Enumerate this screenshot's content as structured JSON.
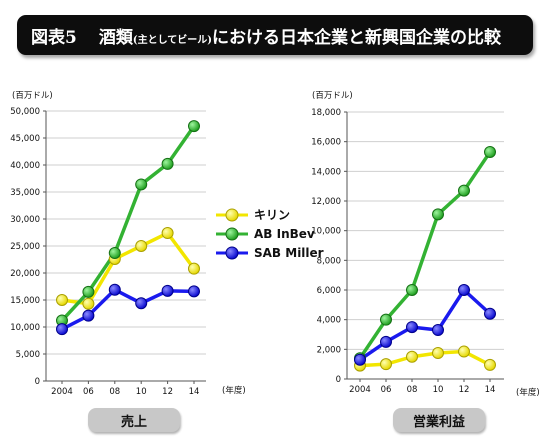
{
  "title": {
    "num": "図表5",
    "main1": "酒類",
    "paren": "(主としてビール)",
    "main2": "における日本企業と新興国企業の比較"
  },
  "chart_data": [
    {
      "type": "line",
      "title": "売上",
      "ylabel": "(百万ドル)",
      "xlabel": "(年度)",
      "x": [
        "2004",
        "06",
        "08",
        "10",
        "12",
        "14"
      ],
      "ylim": [
        0,
        50000
      ],
      "yticks": [
        0,
        5000,
        10000,
        15000,
        20000,
        25000,
        30000,
        35000,
        40000,
        45000,
        50000
      ],
      "ytick_labels": [
        "0",
        "5,000",
        "10,000",
        "15,000",
        "20,000",
        "25,000",
        "30,000",
        "35,000",
        "40,000",
        "45,000",
        "50,000"
      ],
      "series": [
        {
          "name": "キリン",
          "color": "#f2e600",
          "values": [
            15000,
            14300,
            22600,
            25000,
            27400,
            20800
          ]
        },
        {
          "name": "AB InBev",
          "color": "#33b233",
          "values": [
            11200,
            16500,
            23700,
            36400,
            40200,
            47200
          ]
        },
        {
          "name": "SAB Miller",
          "color": "#1a1aee",
          "values": [
            9600,
            12100,
            16900,
            14400,
            16700,
            16600
          ]
        }
      ]
    },
    {
      "type": "line",
      "title": "営業利益",
      "ylabel": "(百万ドル)",
      "xlabel": "(年度)",
      "x": [
        "2004",
        "06",
        "08",
        "10",
        "12",
        "14"
      ],
      "ylim": [
        0,
        18000
      ],
      "yticks": [
        0,
        2000,
        4000,
        6000,
        8000,
        10000,
        12000,
        14000,
        16000,
        18000
      ],
      "ytick_labels": [
        "0",
        "2,000",
        "4,000",
        "6,000",
        "8,000",
        "10,000",
        "12,000",
        "14,000",
        "16,000",
        "18,000"
      ],
      "series": [
        {
          "name": "キリン",
          "color": "#f2e600",
          "values": [
            900,
            1000,
            1500,
            1750,
            1850,
            950
          ]
        },
        {
          "name": "AB InBev",
          "color": "#33b233",
          "values": [
            1400,
            4000,
            6000,
            11100,
            12700,
            15300
          ]
        },
        {
          "name": "SAB Miller",
          "color": "#1a1aee",
          "values": [
            1300,
            2500,
            3500,
            3300,
            6000,
            4400
          ]
        }
      ]
    }
  ]
}
